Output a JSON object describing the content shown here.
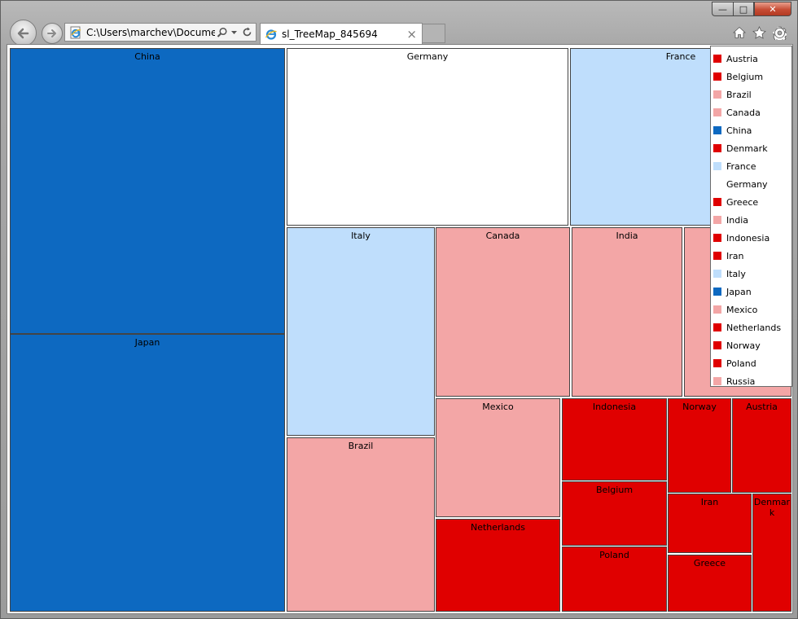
{
  "window": {
    "min": "—",
    "max": "□",
    "close": "✕"
  },
  "nav": {
    "back_icon": "back-arrow-icon",
    "forward_icon": "forward-arrow-icon"
  },
  "address": {
    "value": "C:\\Users\\marchev\\Document"
  },
  "tab": {
    "title": "sl_TreeMap_845694",
    "close": "×"
  },
  "colors": {
    "dark_blue": "#0d69c1",
    "light_blue": "#bfdefc",
    "white": "#ffffff",
    "pink": "#f3a6a6",
    "red": "#e00000"
  },
  "treemap": {
    "cells": [
      {
        "label": "China",
        "color": "#0d69c1"
      },
      {
        "label": "Japan",
        "color": "#0d69c1"
      },
      {
        "label": "Germany",
        "color": "#ffffff"
      },
      {
        "label": "France",
        "color": "#bfdefc"
      },
      {
        "label": "Italy",
        "color": "#bfdefc"
      },
      {
        "label": "Brazil",
        "color": "#f3a6a6"
      },
      {
        "label": "Canada",
        "color": "#f3a6a6"
      },
      {
        "label": "India",
        "color": "#f3a6a6"
      },
      {
        "label": "",
        "color": "#f3a6a6"
      },
      {
        "label": "Mexico",
        "color": "#f3a6a6"
      },
      {
        "label": "Netherlands",
        "color": "#e00000"
      },
      {
        "label": "Indonesia",
        "color": "#e00000"
      },
      {
        "label": "Belgium",
        "color": "#e00000"
      },
      {
        "label": "Poland",
        "color": "#e00000"
      },
      {
        "label": "Norway",
        "color": "#e00000"
      },
      {
        "label": "Austria",
        "color": "#e00000"
      },
      {
        "label": "Iran",
        "color": "#e00000"
      },
      {
        "label": "Greece",
        "color": "#e00000"
      },
      {
        "label": "Denmark",
        "color": "#e00000"
      }
    ]
  },
  "legend": [
    {
      "label": "Austria",
      "color": "#e00000"
    },
    {
      "label": "Belgium",
      "color": "#e00000"
    },
    {
      "label": "Brazil",
      "color": "#f3a6a6"
    },
    {
      "label": "Canada",
      "color": "#f3a6a6"
    },
    {
      "label": "China",
      "color": "#0d69c1"
    },
    {
      "label": "Denmark",
      "color": "#e00000"
    },
    {
      "label": "France",
      "color": "#bfdefc"
    },
    {
      "label": "Germany",
      "color": "#ffffff"
    },
    {
      "label": "Greece",
      "color": "#e00000"
    },
    {
      "label": "India",
      "color": "#f3a6a6"
    },
    {
      "label": "Indonesia",
      "color": "#e00000"
    },
    {
      "label": "Iran",
      "color": "#e00000"
    },
    {
      "label": "Italy",
      "color": "#bfdefc"
    },
    {
      "label": "Japan",
      "color": "#0d69c1"
    },
    {
      "label": "Mexico",
      "color": "#f3a6a6"
    },
    {
      "label": "Netherlands",
      "color": "#e00000"
    },
    {
      "label": "Norway",
      "color": "#e00000"
    },
    {
      "label": "Poland",
      "color": "#e00000"
    },
    {
      "label": "Russia",
      "color": "#f3a6a6"
    }
  ]
}
